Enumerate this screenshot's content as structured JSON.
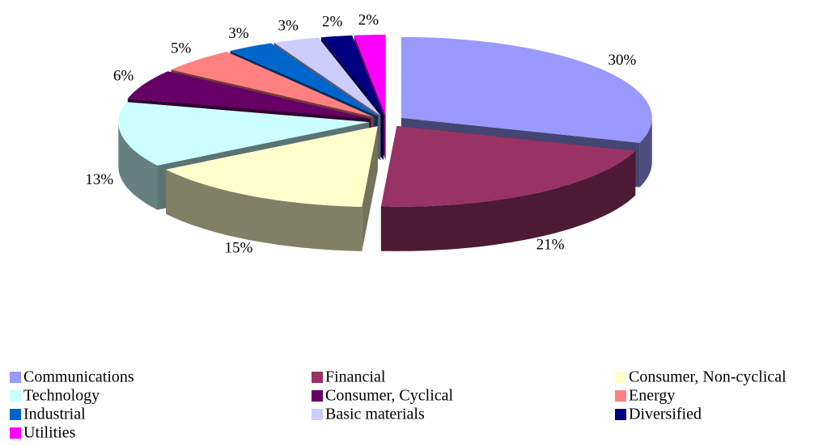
{
  "chart_data": {
    "type": "pie",
    "categories": [
      "Communications",
      "Financial",
      "Consumer, Non-cyclical",
      "Technology",
      "Consumer, Cyclical",
      "Energy",
      "Industrial",
      "Basic materials",
      "Diversified",
      "Utilities"
    ],
    "values": [
      30,
      21,
      15,
      13,
      6,
      5,
      3,
      3,
      2,
      2
    ],
    "value_labels": [
      "30%",
      "21%",
      "15%",
      "13%",
      "6%",
      "5%",
      "3%",
      "3%",
      "2%",
      "2%"
    ],
    "colors": [
      "#9999ff",
      "#993366",
      "#ffffcc",
      "#ccffff",
      "#660066",
      "#ff8080",
      "#0066cc",
      "#ccccff",
      "#000080",
      "#ff00ff"
    ],
    "legend": "bottom"
  }
}
